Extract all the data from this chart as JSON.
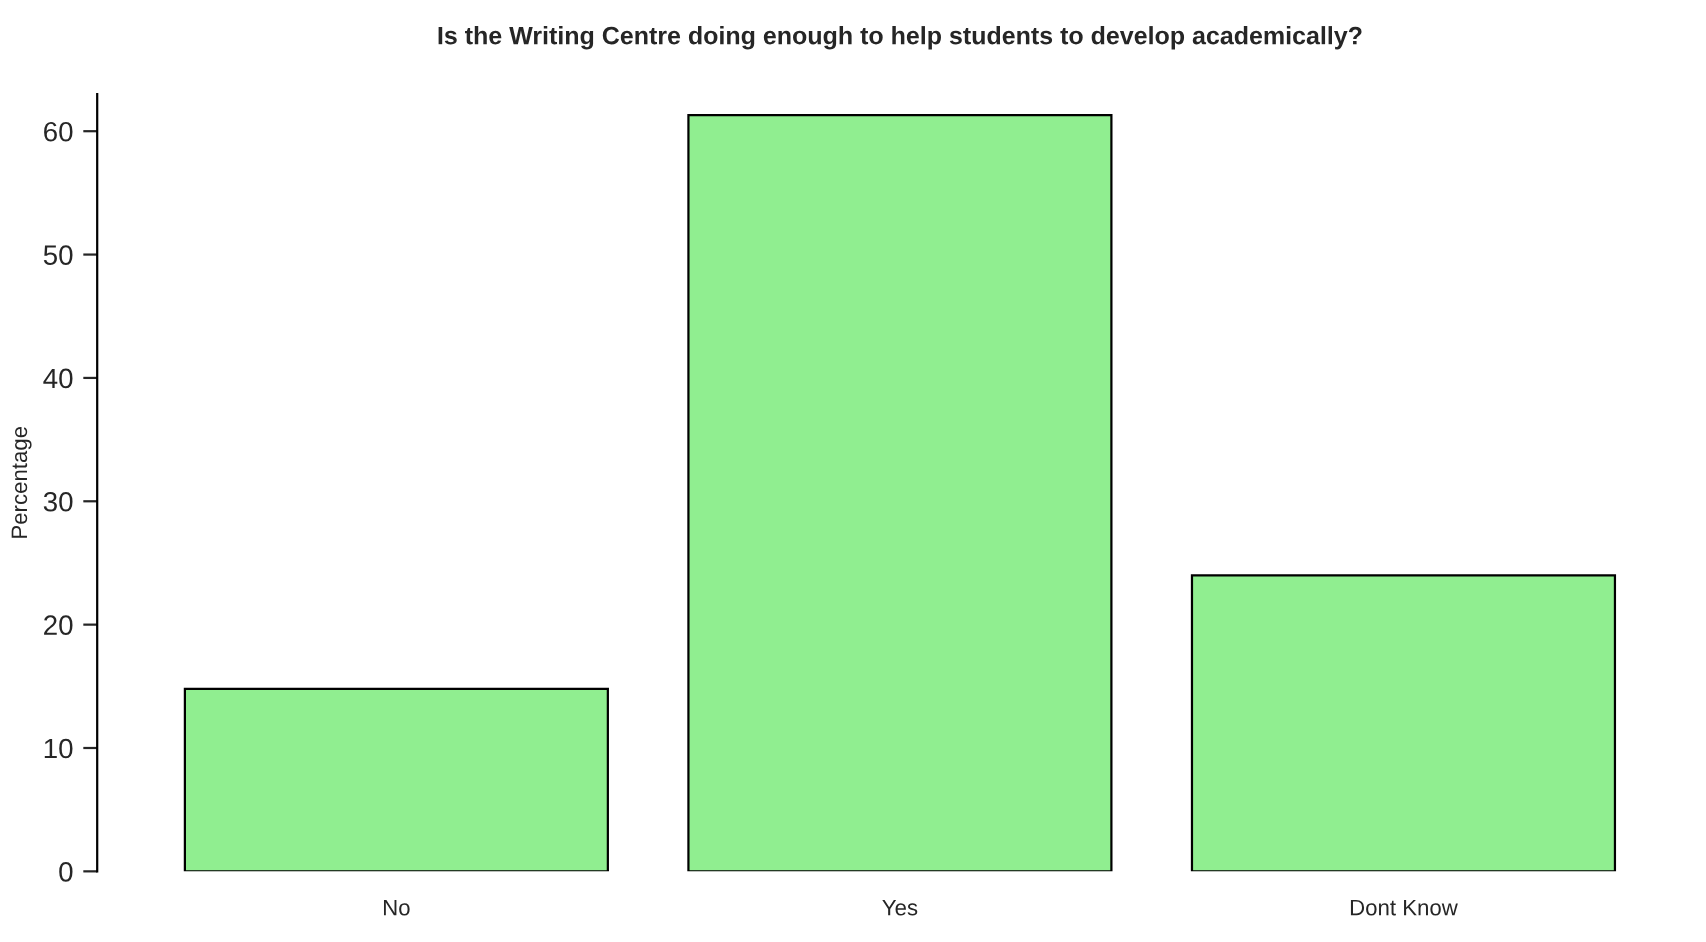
{
  "chart_data": {
    "type": "bar",
    "title": "Is the Writing Centre doing enough to help students to develop academically?",
    "ylabel": "Percentage",
    "categories": [
      "No",
      "Yes",
      "Dont Know"
    ],
    "values": [
      14.8,
      61.3,
      24.0
    ],
    "color": "#90ee90",
    "ylim": [
      0,
      63
    ],
    "yticks": [
      0,
      10,
      20,
      30,
      40,
      50,
      60
    ],
    "grid": false
  }
}
